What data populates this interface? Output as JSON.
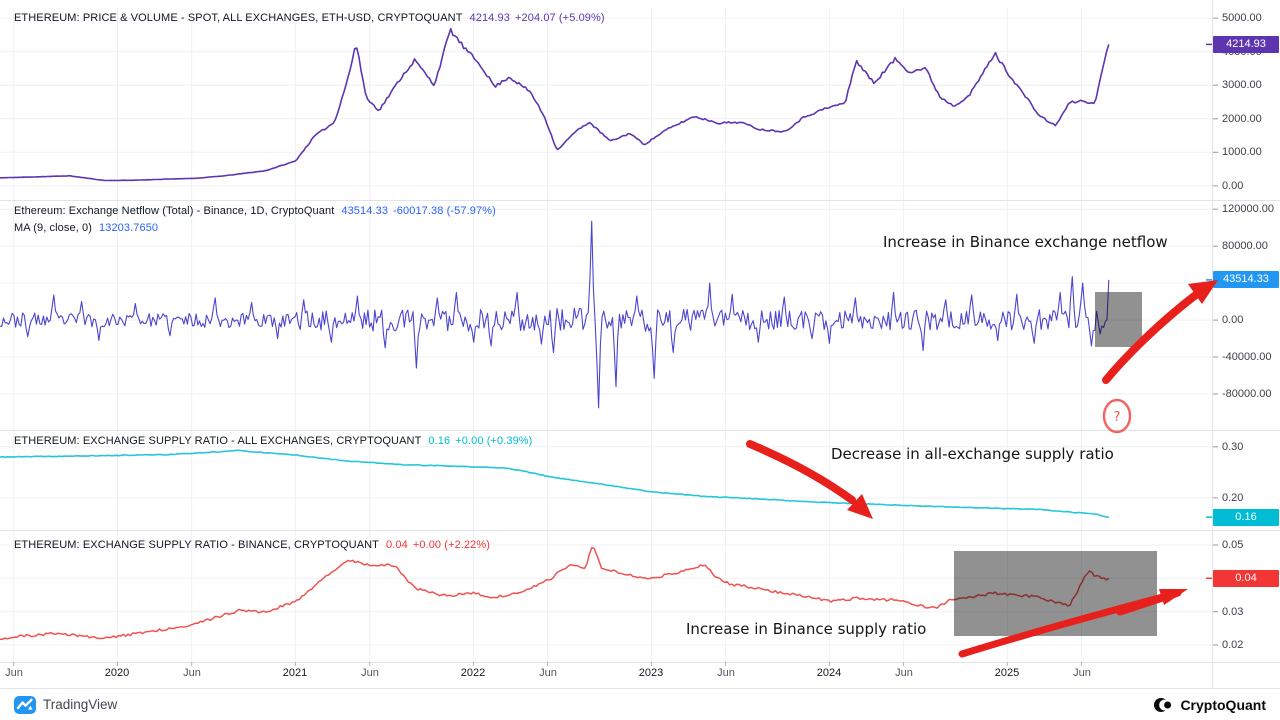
{
  "branding": {
    "tradingview": "TradingView",
    "cryptoquant": "CryptoQuant"
  },
  "annotations": {
    "netflow": "Increase in Binance exchange netflow",
    "supply_all": "Decrease in all-exchange supply ratio",
    "supply_binance": "Increase in Binance supply ratio",
    "question_mark": "?",
    "arrow_color": "#e8201c"
  },
  "x_axis": {
    "xlim": [
      2019.34,
      2026.15
    ],
    "labels": [
      {
        "t": 2019.417,
        "label": "Jun",
        "year": false
      },
      {
        "t": 2020.0,
        "label": "2020",
        "year": true
      },
      {
        "t": 2020.417,
        "label": "Jun",
        "year": false
      },
      {
        "t": 2021.0,
        "label": "2021",
        "year": true
      },
      {
        "t": 2021.417,
        "label": "Jun",
        "year": false
      },
      {
        "t": 2022.0,
        "label": "2022",
        "year": true
      },
      {
        "t": 2022.417,
        "label": "Jun",
        "year": false
      },
      {
        "t": 2023.0,
        "label": "2023",
        "year": true
      },
      {
        "t": 2023.417,
        "label": "Jun",
        "year": false
      },
      {
        "t": 2024.0,
        "label": "2024",
        "year": true
      },
      {
        "t": 2024.417,
        "label": "Jun",
        "year": false
      },
      {
        "t": 2025.0,
        "label": "2025",
        "year": true
      },
      {
        "t": 2025.417,
        "label": "Jun",
        "year": false
      }
    ]
  },
  "chart_data": [
    {
      "type": "line",
      "title": "ETHEREUM: PRICE & VOLUME - SPOT, ALL EXCHANGES, ETH-USD, CRYPTOQUANT",
      "value": "4214.93",
      "change": "+204.07 (+5.09%)",
      "value_color": "#5e35b1",
      "color": "#5e35b1",
      "lw": 1.6,
      "ylim": [
        -420,
        5300
      ],
      "ticks": [
        {
          "v": 5000,
          "label": "5000.00"
        },
        {
          "v": 4000,
          "label": "4000.00"
        },
        {
          "v": 3000,
          "label": "3000.00"
        },
        {
          "v": 2000,
          "label": "2000.00"
        },
        {
          "v": 1000,
          "label": "1000.00"
        },
        {
          "v": 0,
          "label": "0.00"
        }
      ],
      "badge": {
        "label": "4214.93",
        "v": 4214.93,
        "color": "#5e35b1"
      },
      "series": {
        "n": 520,
        "seed": 11,
        "noise_rel": 0.015,
        "tmax": 2025.57,
        "end": 4214.93,
        "anchors": [
          [
            2019.34,
            240
          ],
          [
            2019.55,
            270
          ],
          [
            2019.73,
            300
          ],
          [
            2019.93,
            160
          ],
          [
            2020.1,
            170
          ],
          [
            2020.21,
            190
          ],
          [
            2020.45,
            230
          ],
          [
            2020.6,
            300
          ],
          [
            2020.83,
            450
          ],
          [
            2021.0,
            740
          ],
          [
            2021.11,
            1500
          ],
          [
            2021.22,
            1900
          ],
          [
            2021.3,
            3300
          ],
          [
            2021.34,
            4250
          ],
          [
            2021.4,
            2600
          ],
          [
            2021.47,
            2250
          ],
          [
            2021.59,
            3200
          ],
          [
            2021.67,
            3750
          ],
          [
            2021.78,
            3000
          ],
          [
            2021.87,
            4650
          ],
          [
            2021.95,
            4100
          ],
          [
            2022.04,
            3600
          ],
          [
            2022.12,
            2950
          ],
          [
            2022.2,
            3250
          ],
          [
            2022.32,
            2800
          ],
          [
            2022.4,
            2050
          ],
          [
            2022.47,
            1060
          ],
          [
            2022.57,
            1600
          ],
          [
            2022.65,
            1900
          ],
          [
            2022.77,
            1330
          ],
          [
            2022.88,
            1570
          ],
          [
            2022.96,
            1230
          ],
          [
            2023.08,
            1660
          ],
          [
            2023.24,
            2070
          ],
          [
            2023.38,
            1870
          ],
          [
            2023.5,
            1900
          ],
          [
            2023.61,
            1680
          ],
          [
            2023.75,
            1620
          ],
          [
            2023.86,
            2060
          ],
          [
            2023.97,
            2290
          ],
          [
            2024.09,
            2480
          ],
          [
            2024.15,
            3740
          ],
          [
            2024.25,
            3060
          ],
          [
            2024.37,
            3780
          ],
          [
            2024.45,
            3400
          ],
          [
            2024.54,
            3510
          ],
          [
            2024.62,
            2660
          ],
          [
            2024.7,
            2380
          ],
          [
            2024.79,
            2720
          ],
          [
            2024.87,
            3420
          ],
          [
            2024.93,
            3950
          ],
          [
            2025.01,
            3310
          ],
          [
            2025.1,
            2680
          ],
          [
            2025.18,
            2090
          ],
          [
            2025.27,
            1790
          ],
          [
            2025.35,
            2480
          ],
          [
            2025.43,
            2540
          ],
          [
            2025.49,
            2420
          ],
          [
            2025.54,
            3620
          ],
          [
            2025.57,
            4214.93
          ]
        ]
      }
    },
    {
      "type": "line",
      "title": "Ethereum: Exchange Netflow (Total) - Binance, 1D, CryptoQuant",
      "value": "43514.33",
      "change": "-60017.38 (-57.97%)",
      "value_color": "#2962ff",
      "color": "#4b45cf",
      "lw": 1.1,
      "legend2": {
        "label": "MA (9, close, 0)",
        "value": "13203.7650",
        "value_color": "#2962ff"
      },
      "ylim": [
        -119000,
        130000
      ],
      "ticks": [
        {
          "v": 120000,
          "label": "120000.00"
        },
        {
          "v": 80000,
          "label": "80000.00"
        },
        {
          "v": 40000,
          "label": "40000.00"
        },
        {
          "v": 0,
          "label": "0.00"
        },
        {
          "v": -40000,
          "label": "-40000.00"
        },
        {
          "v": -80000,
          "label": "-80000.00"
        }
      ],
      "badge": {
        "label": "43514.33",
        "v": 43514.33,
        "color": "#2196f3"
      },
      "series": {
        "n": 640,
        "seed": 23,
        "tmax": 2025.57,
        "end": 43514.33,
        "amp_anchors": [
          [
            2019.34,
            8000
          ],
          [
            2020.2,
            7000
          ],
          [
            2020.8,
            9000
          ],
          [
            2021.3,
            12000
          ],
          [
            2021.8,
            12000
          ],
          [
            2022.3,
            12000
          ],
          [
            2022.8,
            14000
          ],
          [
            2023.2,
            12000
          ],
          [
            2023.8,
            10000
          ],
          [
            2024.3,
            11000
          ],
          [
            2024.9,
            10000
          ],
          [
            2025.3,
            12000
          ],
          [
            2025.57,
            13000
          ]
        ],
        "spikes": [
          [
            2019.5,
            -18000
          ],
          [
            2019.64,
            27000
          ],
          [
            2019.8,
            20000
          ],
          [
            2019.9,
            -22000
          ],
          [
            2020.1,
            18000
          ],
          [
            2020.3,
            -17000
          ],
          [
            2020.55,
            24000
          ],
          [
            2020.75,
            19000
          ],
          [
            2020.9,
            -20000
          ],
          [
            2021.05,
            22000
          ],
          [
            2021.2,
            -24000
          ],
          [
            2021.35,
            26000
          ],
          [
            2021.5,
            -30000
          ],
          [
            2021.68,
            -52000
          ],
          [
            2021.8,
            24000
          ],
          [
            2021.9,
            30000
          ],
          [
            2022.0,
            -24000
          ],
          [
            2022.1,
            -28000
          ],
          [
            2022.25,
            30000
          ],
          [
            2022.38,
            -26000
          ],
          [
            2022.45,
            -35000
          ],
          [
            2022.66,
            107000
          ],
          [
            2022.7,
            -95000
          ],
          [
            2022.8,
            -72000
          ],
          [
            2022.92,
            26000
          ],
          [
            2023.02,
            -63000
          ],
          [
            2023.12,
            -35000
          ],
          [
            2023.33,
            40000
          ],
          [
            2023.45,
            28000
          ],
          [
            2023.6,
            -24000
          ],
          [
            2023.75,
            25000
          ],
          [
            2023.9,
            -20000
          ],
          [
            2024.0,
            -25000
          ],
          [
            2024.15,
            24000
          ],
          [
            2024.36,
            30000
          ],
          [
            2024.53,
            -33000
          ],
          [
            2024.65,
            22000
          ],
          [
            2024.8,
            27000
          ],
          [
            2024.95,
            -22000
          ],
          [
            2025.05,
            28000
          ],
          [
            2025.15,
            -25000
          ],
          [
            2025.3,
            30000
          ],
          [
            2025.37,
            47000
          ],
          [
            2025.42,
            40000
          ],
          [
            2025.47,
            -28000
          ],
          [
            2025.52,
            -15000
          ]
        ]
      }
    },
    {
      "type": "line",
      "title": "ETHEREUM: EXCHANGE SUPPLY RATIO - ALL EXCHANGES, CRYPTOQUANT",
      "value": "0.16",
      "change": "+0.00 (+0.39%)",
      "value_color": "#00bcd4",
      "color": "#26c6da",
      "lw": 1.6,
      "ylim": [
        0.137,
        0.333
      ],
      "ticks": [
        {
          "v": 0.3,
          "label": "0.30"
        },
        {
          "v": 0.2,
          "label": "0.20"
        }
      ],
      "badge": {
        "label": "0.16",
        "v": 0.162,
        "color": "#00bcd4"
      },
      "series": {
        "n": 430,
        "seed": 37,
        "noise_abs": 0.0007,
        "tmax": 2025.57,
        "end": 0.162,
        "anchors": [
          [
            2019.34,
            0.28
          ],
          [
            2019.8,
            0.282
          ],
          [
            2020.3,
            0.285
          ],
          [
            2020.55,
            0.29
          ],
          [
            2020.67,
            0.293
          ],
          [
            2020.85,
            0.288
          ],
          [
            2021.0,
            0.284
          ],
          [
            2021.3,
            0.272
          ],
          [
            2021.6,
            0.265
          ],
          [
            2021.9,
            0.262
          ],
          [
            2022.2,
            0.258
          ],
          [
            2022.45,
            0.24
          ],
          [
            2022.7,
            0.228
          ],
          [
            2023.0,
            0.212
          ],
          [
            2023.3,
            0.203
          ],
          [
            2023.6,
            0.198
          ],
          [
            2023.9,
            0.192
          ],
          [
            2024.2,
            0.188
          ],
          [
            2024.5,
            0.184
          ],
          [
            2024.8,
            0.181
          ],
          [
            2025.0,
            0.179
          ],
          [
            2025.2,
            0.177
          ],
          [
            2025.35,
            0.172
          ],
          [
            2025.5,
            0.168
          ],
          [
            2025.57,
            0.162
          ]
        ]
      }
    },
    {
      "type": "line",
      "title": "ETHEREUM: EXCHANGE SUPPLY RATIO - BINANCE, CRYPTOQUANT",
      "value": "0.04",
      "change": "+0.00 (+2.22%)",
      "value_color": "#f23636",
      "color": "#ef5350",
      "lw": 1.5,
      "ylim": [
        0.0149,
        0.0545
      ],
      "ticks": [
        {
          "v": 0.05,
          "label": "0.05"
        },
        {
          "v": 0.04,
          "label": "0.04"
        },
        {
          "v": 0.03,
          "label": "0.03"
        },
        {
          "v": 0.02,
          "label": "0.02"
        }
      ],
      "badge": {
        "label": "0.04",
        "v": 0.04,
        "color": "#f23636"
      },
      "series": {
        "n": 460,
        "seed": 51,
        "noise_abs": 0.0004,
        "tmax": 2025.57,
        "end": 0.04,
        "anchors": [
          [
            2019.34,
            0.022
          ],
          [
            2019.65,
            0.0235
          ],
          [
            2019.93,
            0.022
          ],
          [
            2020.15,
            0.0238
          ],
          [
            2020.43,
            0.0262
          ],
          [
            2020.69,
            0.0305
          ],
          [
            2020.83,
            0.0298
          ],
          [
            2021.0,
            0.033
          ],
          [
            2021.16,
            0.04
          ],
          [
            2021.3,
            0.0455
          ],
          [
            2021.4,
            0.0442
          ],
          [
            2021.56,
            0.0438
          ],
          [
            2021.67,
            0.037
          ],
          [
            2021.84,
            0.0348
          ],
          [
            2022.01,
            0.0355
          ],
          [
            2022.12,
            0.0342
          ],
          [
            2022.29,
            0.0363
          ],
          [
            2022.43,
            0.0398
          ],
          [
            2022.54,
            0.0442
          ],
          [
            2022.63,
            0.0428
          ],
          [
            2022.67,
            0.0505
          ],
          [
            2022.72,
            0.043
          ],
          [
            2022.79,
            0.0422
          ],
          [
            2022.96,
            0.04
          ],
          [
            2023.13,
            0.0413
          ],
          [
            2023.3,
            0.0443
          ],
          [
            2023.36,
            0.0405
          ],
          [
            2023.44,
            0.0382
          ],
          [
            2023.58,
            0.0372
          ],
          [
            2023.75,
            0.0355
          ],
          [
            2023.92,
            0.034
          ],
          [
            2024.03,
            0.033
          ],
          [
            2024.14,
            0.034
          ],
          [
            2024.25,
            0.0336
          ],
          [
            2024.37,
            0.0336
          ],
          [
            2024.48,
            0.0322
          ],
          [
            2024.59,
            0.031
          ],
          [
            2024.68,
            0.0335
          ],
          [
            2024.79,
            0.0342
          ],
          [
            2024.93,
            0.0356
          ],
          [
            2025.04,
            0.035
          ],
          [
            2025.15,
            0.0346
          ],
          [
            2025.27,
            0.033
          ],
          [
            2025.35,
            0.0318
          ],
          [
            2025.43,
            0.0398
          ],
          [
            2025.46,
            0.042
          ],
          [
            2025.5,
            0.0405
          ],
          [
            2025.545,
            0.0398
          ],
          [
            2025.57,
            0.04
          ]
        ]
      }
    }
  ]
}
